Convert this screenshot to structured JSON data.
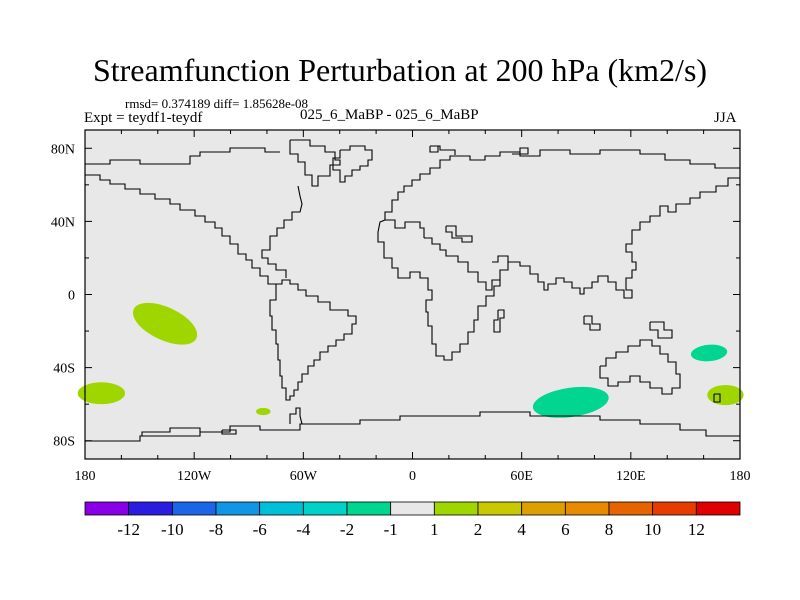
{
  "title": "Streamfunction Perturbation at 200 hPa (km2/s)",
  "stats": "rmsd= 0.374189 diff= 1.85628e-08",
  "experiment": "Expt = teydf1-teydf",
  "case_label": "025_6_MaBP - 025_6_MaBP",
  "season": "JJA",
  "map": {
    "projection": "cylindrical equidistant",
    "lon_range": [
      -180,
      180
    ],
    "lat_range": [
      -90,
      90
    ],
    "background_color": "#e8e8e8",
    "coast_color": "#000000",
    "lon_ticks": [
      {
        "value": -180,
        "label": "180"
      },
      {
        "value": -120,
        "label": "120W"
      },
      {
        "value": -60,
        "label": "60W"
      },
      {
        "value": 0,
        "label": "0"
      },
      {
        "value": 60,
        "label": "60E"
      },
      {
        "value": 120,
        "label": "120E"
      },
      {
        "value": 180,
        "label": "180"
      }
    ],
    "lat_ticks": [
      {
        "value": 80,
        "label": "80N"
      },
      {
        "value": 40,
        "label": "40N"
      },
      {
        "value": 0,
        "label": "0"
      },
      {
        "value": -40,
        "label": "40S"
      },
      {
        "value": -80,
        "label": "80S"
      }
    ],
    "anomalies": [
      {
        "name": "positive-anomaly-pacific",
        "lon": -136,
        "lat": -16,
        "rx": 19,
        "ry": 9,
        "rot": 25,
        "color": "#a0d600"
      },
      {
        "name": "positive-anomaly-dateline-west",
        "lon": -171,
        "lat": -54,
        "rx": 13,
        "ry": 6,
        "rot": 0,
        "color": "#a0d600"
      },
      {
        "name": "positive-anomaly-small-south-america",
        "lon": -82,
        "lat": -64,
        "rx": 4,
        "ry": 2,
        "rot": 0,
        "color": "#a0d600"
      },
      {
        "name": "positive-anomaly-dateline-east",
        "lon": 172,
        "lat": -55,
        "rx": 10,
        "ry": 5.5,
        "rot": 0,
        "color": "#a0d600"
      },
      {
        "name": "negative-anomaly-indian-ocean",
        "lon": 87,
        "lat": -59,
        "rx": 21,
        "ry": 8,
        "rot": -8,
        "color": "#00d68f"
      },
      {
        "name": "negative-anomaly-south-pacific",
        "lon": 163,
        "lat": -32,
        "rx": 10,
        "ry": 4.5,
        "rot": -5,
        "color": "#00d68f"
      }
    ]
  },
  "colorbar": {
    "colors": [
      "#8a00e6",
      "#2a1de0",
      "#1a66e6",
      "#1196e6",
      "#00c0d8",
      "#00d2c8",
      "#00d68f",
      "#e8e8e8",
      "#a0d600",
      "#c8c800",
      "#dca000",
      "#e68a00",
      "#e66400",
      "#e63c00",
      "#e00000"
    ],
    "labels": [
      "-12",
      "-10",
      "-8",
      "-6",
      "-4",
      "-2",
      "-1",
      "1",
      "2",
      "4",
      "6",
      "8",
      "10",
      "12"
    ]
  }
}
